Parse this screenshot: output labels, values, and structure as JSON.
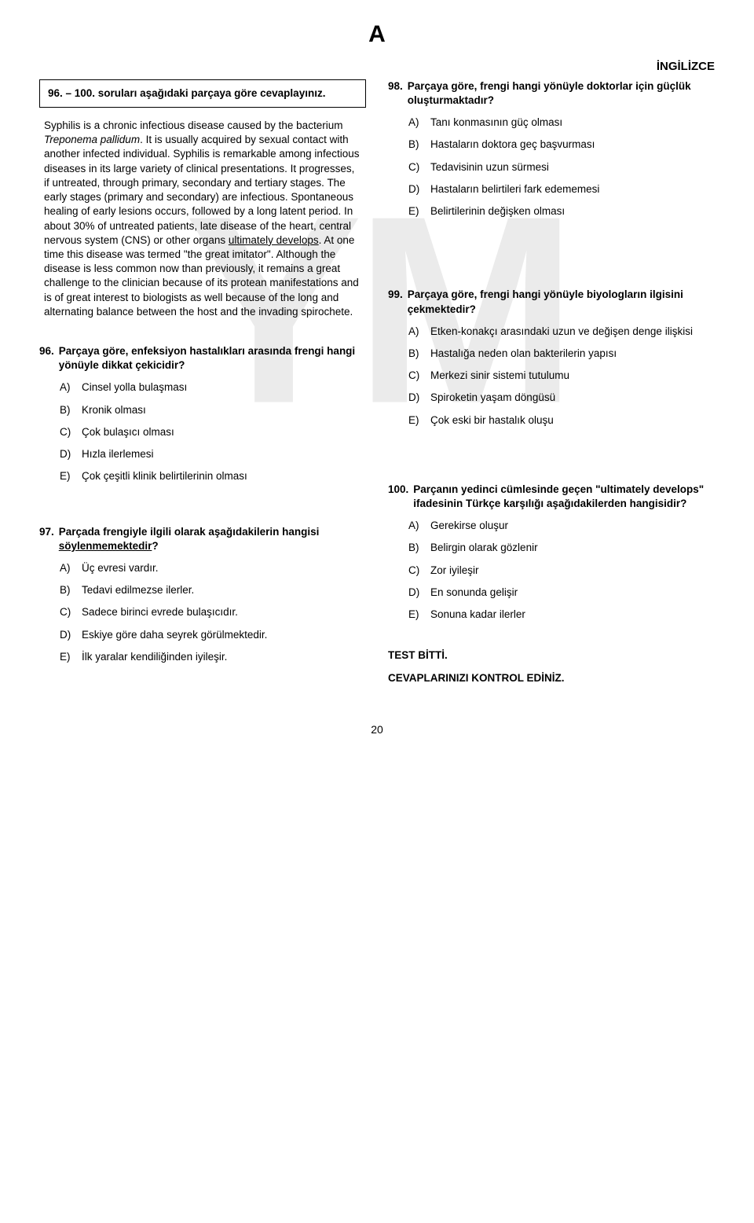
{
  "watermark": "YM",
  "top_letter": "A",
  "section_title": "İNGİLİZCE",
  "page_number": "20",
  "instruction": "96. – 100. soruları aşağıdaki parçaya göre cevaplayınız.",
  "passage": {
    "p1a": "Syphilis is a chronic infectious disease caused by the bacterium ",
    "p1_italic": "Treponema pallidum",
    "p1b": ". It is usually acquired by sexual contact with another infected individual. Syphilis is remarkable among infectious diseases in its large variety of clinical presentations. It progresses, if untreated, through primary, secondary and tertiary stages. The early stages (primary and secondary) are infectious. Spontaneous healing of early lesions occurs, followed by a long latent period. In about 30% of untreated patients, late disease of the heart, central nervous system (CNS) or other organs ",
    "p1_ul": "ultimately develops",
    "p1c": ". At one time this disease was termed \"the great imitator\". Although the disease is less common now than previously, it remains a great challenge to the clinician because of its protean manifestations and is of great interest to biologists as well because of the long and alternating balance between the host and the invading spirochete."
  },
  "q96": {
    "num": "96.",
    "text": "Parçaya göre, enfeksiyon hastalıkları arasında frengi hangi yönüyle dikkat çekicidir?",
    "opts": {
      "A": "Cinsel yolla bulaşması",
      "B": "Kronik olması",
      "C": "Çok bulaşıcı olması",
      "D": "Hızla ilerlemesi",
      "E": "Çok çeşitli klinik belirtilerinin olması"
    }
  },
  "q97": {
    "num": "97.",
    "text_a": "Parçada frengiyle ilgili olarak aşağıdakilerin hangisi ",
    "text_ul": "söylenmemektedir",
    "text_b": "?",
    "opts": {
      "A": "Üç evresi vardır.",
      "B": "Tedavi edilmezse ilerler.",
      "C": "Sadece birinci evrede bulaşıcıdır.",
      "D": "Eskiye göre daha seyrek görülmektedir.",
      "E": "İlk yaralar kendiliğinden iyileşir."
    }
  },
  "q98": {
    "num": "98.",
    "text": "Parçaya göre, frengi hangi yönüyle doktorlar için güçlük oluşturmaktadır?",
    "opts": {
      "A": "Tanı konmasının güç olması",
      "B": "Hastaların doktora geç başvurması",
      "C": "Tedavisinin uzun sürmesi",
      "D": "Hastaların belirtileri fark edememesi",
      "E": "Belirtilerinin değişken olması"
    }
  },
  "q99": {
    "num": "99.",
    "text": "Parçaya göre, frengi hangi yönüyle biyologların ilgisini çekmektedir?",
    "opts": {
      "A": "Etken-konakçı arasındaki uzun ve değişen denge ilişkisi",
      "B": "Hastalığa neden olan bakterilerin yapısı",
      "C": "Merkezi sinir sistemi tutulumu",
      "D": "Spiroketin yaşam döngüsü",
      "E": "Çok eski bir hastalık oluşu"
    }
  },
  "q100": {
    "num": "100.",
    "text": "Parçanın yedinci cümlesinde geçen \"ultimately develops\" ifadesinin Türkçe karşılığı aşağıdakilerden hangisidir?",
    "opts": {
      "A": "Gerekirse oluşur",
      "B": "Belirgin olarak gözlenir",
      "C": "Zor iyileşir",
      "D": "En sonunda gelişir",
      "E": "Sonuna kadar ilerler"
    }
  },
  "end1": "TEST BİTTİ.",
  "end2": "CEVAPLARINIZI KONTROL EDİNİZ.",
  "labels": {
    "A": "A)",
    "B": "B)",
    "C": "C)",
    "D": "D)",
    "E": "E)"
  }
}
